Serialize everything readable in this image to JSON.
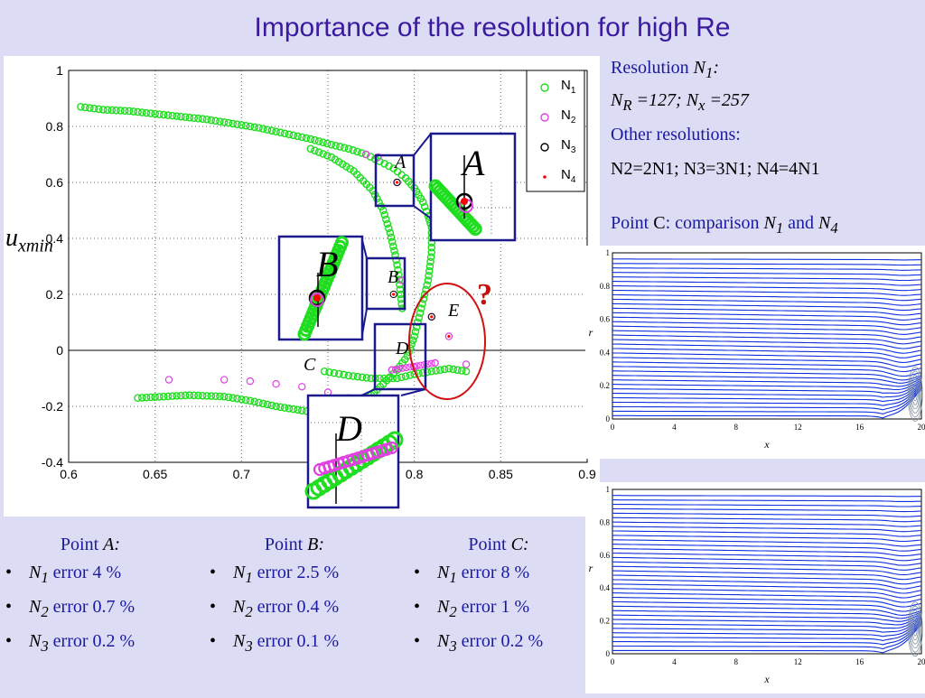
{
  "title": "Importance of the resolution for high Re",
  "ylabel_main": "u",
  "ylabel_sub": "xmin",
  "info": {
    "res_label": "Resolution",
    "res_var": "N",
    "res_sub": "1",
    "nr_line": "N",
    "nr_sub": "R",
    "nr_text": " =127; ",
    "nx_var": "N",
    "nx_sub": "x",
    "nx_text": " =257",
    "other": "Other resolutions:",
    "rel_line": "N2=2N1;  N3=3N1;   N4=4N1",
    "point_label": "Point ",
    "point_letter": "C",
    "point_colon": ":",
    "comparison": " comparison ",
    "comp_n": "N",
    "comp_n1_sub": "1",
    "and": " and ",
    "comp_n4_sub": "4"
  },
  "question_mark": "?",
  "insets": {
    "A": "A",
    "B": "B",
    "D": "D"
  },
  "annotations": {
    "A": "A",
    "B": "B",
    "C": "C",
    "D": "D",
    "E": "E"
  },
  "chart_data": [
    {
      "type": "scatter",
      "title": "",
      "xlabel": "",
      "ylabel": "u_xmin",
      "xlim": [
        0.6,
        0.9
      ],
      "ylim": [
        -0.4,
        1.0
      ],
      "xticks": [
        "0.6",
        "0.65",
        "0.7",
        "0.75",
        "0.8",
        "0.85",
        "0.9"
      ],
      "yticks": [
        "1",
        "0.8",
        "0.6",
        "0.4",
        "0.2",
        "0",
        "-0.2",
        "-0.4"
      ],
      "grid": true,
      "legend_position": "top-right",
      "series": [
        {
          "name": "N1",
          "color": "#1fdd1f",
          "marker": "circle",
          "upper_branch": [
            [
              0.607,
              0.87
            ],
            [
              0.62,
              0.86
            ],
            [
              0.635,
              0.855
            ],
            [
              0.65,
              0.845
            ],
            [
              0.665,
              0.835
            ],
            [
              0.68,
              0.825
            ],
            [
              0.695,
              0.81
            ],
            [
              0.71,
              0.795
            ],
            [
              0.725,
              0.775
            ],
            [
              0.74,
              0.755
            ],
            [
              0.752,
              0.735
            ],
            [
              0.762,
              0.72
            ],
            [
              0.772,
              0.7
            ],
            [
              0.78,
              0.675
            ],
            [
              0.788,
              0.65
            ],
            [
              0.795,
              0.615
            ],
            [
              0.8,
              0.58
            ],
            [
              0.805,
              0.53
            ],
            [
              0.808,
              0.48
            ],
            [
              0.81,
              0.44
            ]
          ],
          "lower_branch": [
            [
              0.64,
              -0.17
            ],
            [
              0.655,
              -0.165
            ],
            [
              0.67,
              -0.16
            ],
            [
              0.69,
              -0.165
            ],
            [
              0.705,
              -0.18
            ],
            [
              0.72,
              -0.2
            ],
            [
              0.735,
              -0.215
            ],
            [
              0.748,
              -0.225
            ],
            [
              0.757,
              -0.228
            ],
            [
              0.762,
              -0.215
            ],
            [
              0.768,
              -0.19
            ],
            [
              0.775,
              -0.16
            ],
            [
              0.782,
              -0.12
            ],
            [
              0.79,
              -0.07
            ],
            [
              0.796,
              -0.02
            ],
            [
              0.8,
              0.05
            ],
            [
              0.804,
              0.15
            ],
            [
              0.808,
              0.25
            ],
            [
              0.81,
              0.35
            ],
            [
              0.81,
              0.42
            ]
          ],
          "tail_branch": [
            [
              0.748,
              -0.075
            ],
            [
              0.762,
              -0.09
            ],
            [
              0.775,
              -0.1
            ],
            [
              0.79,
              -0.1
            ],
            [
              0.8,
              -0.085
            ],
            [
              0.81,
              -0.075
            ],
            [
              0.82,
              -0.065
            ],
            [
              0.83,
              -0.075
            ]
          ],
          "s_branch": [
            [
              0.74,
              0.72
            ],
            [
              0.752,
              0.69
            ],
            [
              0.765,
              0.64
            ],
            [
              0.776,
              0.57
            ],
            [
              0.782,
              0.5
            ],
            [
              0.786,
              0.42
            ],
            [
              0.789,
              0.34
            ],
            [
              0.791,
              0.27
            ],
            [
              0.792,
              0.2
            ],
            [
              0.793,
              0.15
            ]
          ]
        },
        {
          "name": "N2",
          "color": "#e040e0",
          "marker": "circle",
          "points": [
            [
              0.658,
              -0.105
            ],
            [
              0.69,
              -0.105
            ],
            [
              0.705,
              -0.11
            ],
            [
              0.72,
              -0.12
            ],
            [
              0.735,
              -0.13
            ],
            [
              0.75,
              -0.15
            ],
            [
              0.762,
              -0.17
            ],
            [
              0.772,
              0.7
            ],
            [
              0.779,
              0.69
            ],
            [
              0.79,
              0.6
            ],
            [
              0.793,
              0.25
            ],
            [
              0.787,
              -0.07
            ],
            [
              0.8,
              -0.06
            ],
            [
              0.812,
              -0.045
            ],
            [
              0.81,
              0.12
            ],
            [
              0.82,
              0.05
            ],
            [
              0.83,
              -0.05
            ]
          ]
        },
        {
          "name": "N3",
          "color": "#000000",
          "marker": "circle",
          "points": [
            [
              0.79,
              0.6
            ],
            [
              0.788,
              0.2
            ],
            [
              0.81,
              0.12
            ]
          ]
        },
        {
          "name": "N4",
          "color": "#ff0000",
          "marker": "dot",
          "points": [
            [
              0.79,
              0.6
            ],
            [
              0.788,
              0.2
            ],
            [
              0.81,
              0.12
            ],
            [
              0.82,
              0.05
            ]
          ]
        }
      ]
    },
    {
      "type": "line",
      "title": "",
      "xlabel": "x",
      "ylabel": "r",
      "xlim": [
        0,
        20
      ],
      "ylim": [
        0,
        1
      ],
      "xticks": [
        "0",
        "4",
        "8",
        "12",
        "16",
        "20"
      ],
      "yticks": [
        "0",
        "0.2",
        "0.4",
        "0.6",
        "0.8",
        "1"
      ],
      "description_series": "streamlines",
      "color": "#1030e0"
    },
    {
      "type": "line",
      "title": "",
      "xlabel": "x",
      "ylabel": "r",
      "xlim": [
        0,
        20
      ],
      "ylim": [
        0,
        1
      ],
      "xticks": [
        "0",
        "4",
        "8",
        "12",
        "16",
        "20"
      ],
      "yticks": [
        "0",
        "0.2",
        "0.4",
        "0.6",
        "0.8",
        "1"
      ],
      "color": "#1030e0"
    }
  ],
  "errors": [
    {
      "point_label": "Point ",
      "point_letter": "A",
      "colon": ":",
      "rows": [
        {
          "n": "N",
          "sub": "1",
          "text": " error 4 %"
        },
        {
          "n": "N",
          "sub": "2",
          "text": " error 0.7 %"
        },
        {
          "n": "N",
          "sub": "3",
          "text": " error 0.2 %"
        }
      ]
    },
    {
      "point_label": "Point ",
      "point_letter": "B",
      "colon": ":",
      "rows": [
        {
          "n": "N",
          "sub": "1",
          "text": " error 2.5 %"
        },
        {
          "n": "N",
          "sub": "2",
          "text": " error 0.4 %"
        },
        {
          "n": "N",
          "sub": "3",
          "text": " error 0.1 %"
        }
      ]
    },
    {
      "point_label": "Point ",
      "point_letter": "C",
      "colon": ":",
      "rows": [
        {
          "n": "N",
          "sub": "1",
          "text": " error 8 %"
        },
        {
          "n": "N",
          "sub": "2",
          "text": " error 1 %"
        },
        {
          "n": "N",
          "sub": "3",
          "text": " error 0.2 %"
        }
      ]
    }
  ],
  "bullet": "•"
}
